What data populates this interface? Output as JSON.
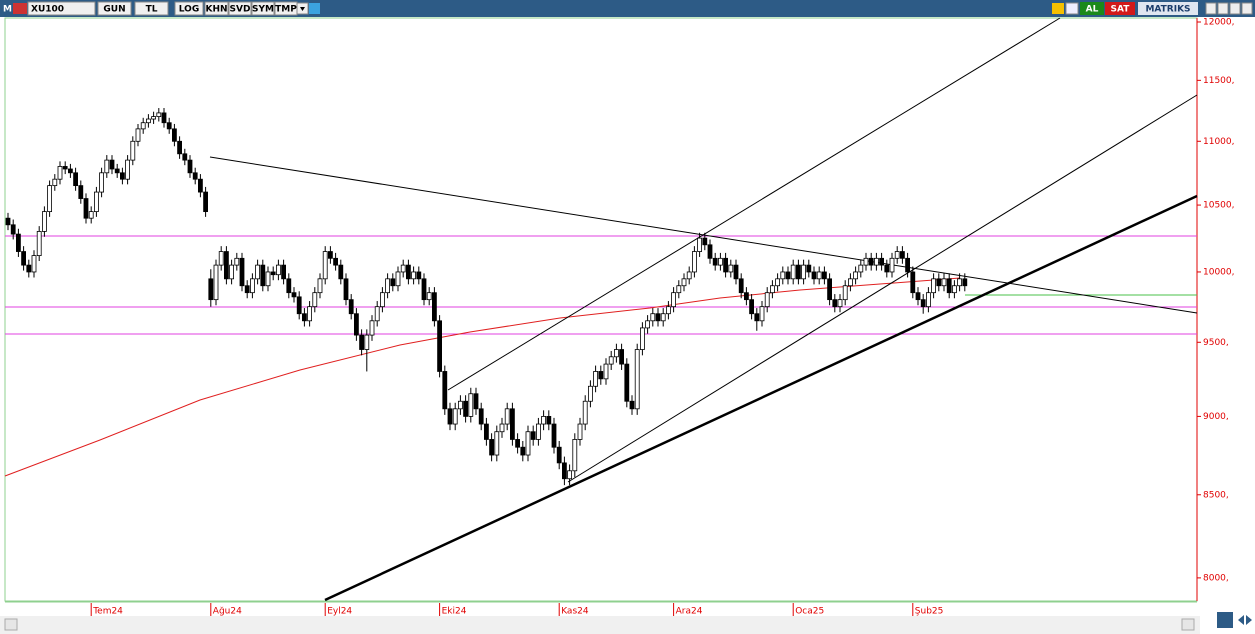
{
  "toolbar": {
    "logo": "M",
    "symbol": "XU100",
    "buttons": [
      "GUN",
      "TL",
      "LOG",
      "KHN",
      "SVD",
      "SYM",
      "TMP"
    ],
    "buy": "AL",
    "sell": "SAT",
    "brand": "MATRIKS"
  },
  "chart_data": {
    "type": "candlestick",
    "log": true,
    "up_color": "#ffffff",
    "down_color": "#000000",
    "axis_color": "#e00000",
    "ylim": [
      7872,
      12035
    ],
    "yticks": [
      {
        "value": 8000,
        "label": "8000,"
      },
      {
        "value": 8500,
        "label": "8500,"
      },
      {
        "value": 9000,
        "label": "9000,"
      },
      {
        "value": 9500,
        "label": "9500,"
      },
      {
        "value": 10000,
        "label": "10000,"
      },
      {
        "value": 10500,
        "label": "10500,"
      },
      {
        "value": 11000,
        "label": "11000,"
      },
      {
        "value": 11500,
        "label": "11500,"
      },
      {
        "value": 12000,
        "label": "12000,"
      }
    ],
    "categories": [
      null,
      null,
      null,
      null,
      null,
      null,
      null,
      null,
      null,
      null,
      null,
      null,
      null,
      null,
      null,
      null,
      "Tem24",
      null,
      null,
      null,
      null,
      null,
      null,
      null,
      null,
      null,
      null,
      null,
      null,
      null,
      null,
      null,
      null,
      null,
      null,
      null,
      null,
      null,
      null,
      "Ağu24",
      null,
      null,
      null,
      null,
      null,
      null,
      null,
      null,
      null,
      null,
      null,
      null,
      null,
      null,
      null,
      null,
      null,
      null,
      null,
      null,
      null,
      "Eyl24",
      null,
      null,
      null,
      null,
      null,
      null,
      null,
      null,
      null,
      null,
      null,
      null,
      null,
      null,
      null,
      null,
      null,
      null,
      null,
      null,
      null,
      "Eki24",
      null,
      null,
      null,
      null,
      null,
      null,
      null,
      null,
      null,
      null,
      null,
      null,
      null,
      null,
      null,
      null,
      null,
      null,
      null,
      null,
      null,
      null,
      "Kas24",
      null,
      null,
      null,
      null,
      null,
      null,
      null,
      null,
      null,
      null,
      null,
      null,
      null,
      null,
      null,
      null,
      null,
      null,
      null,
      null,
      null,
      "Ara24",
      null,
      null,
      null,
      null,
      null,
      null,
      null,
      null,
      null,
      null,
      null,
      null,
      null,
      null,
      null,
      null,
      null,
      null,
      null,
      null,
      null,
      null,
      "Oca25",
      null,
      null,
      null,
      null,
      null,
      null,
      null,
      null,
      null,
      null,
      null,
      null,
      null,
      null,
      null,
      null,
      null,
      null,
      null,
      null,
      null,
      null,
      "Şub25",
      null,
      null,
      null,
      null,
      null,
      null,
      null,
      null,
      null,
      null
    ],
    "ohlc": [
      [
        10400,
        10440,
        10310,
        10350
      ],
      [
        10350,
        10390,
        10240,
        10280
      ],
      [
        10280,
        10320,
        10110,
        10150
      ],
      [
        10150,
        10190,
        10010,
        10050
      ],
      [
        10050,
        10090,
        9960,
        10000
      ],
      [
        10000,
        10160,
        9960,
        10120
      ],
      [
        10120,
        10340,
        10080,
        10300
      ],
      [
        10300,
        10490,
        10260,
        10450
      ],
      [
        10450,
        10690,
        10410,
        10650
      ],
      [
        10650,
        10740,
        10610,
        10700
      ],
      [
        10700,
        10840,
        10660,
        10800
      ],
      [
        10800,
        10840,
        10740,
        10780
      ],
      [
        10780,
        10820,
        10710,
        10750
      ],
      [
        10750,
        10790,
        10610,
        10650
      ],
      [
        10650,
        10690,
        10510,
        10550
      ],
      [
        10550,
        10590,
        10360,
        10400
      ],
      [
        10400,
        10490,
        10360,
        10450
      ],
      [
        10450,
        10640,
        10410,
        10600
      ],
      [
        10600,
        10790,
        10560,
        10750
      ],
      [
        10750,
        10890,
        10710,
        10850
      ],
      [
        10850,
        10890,
        10740,
        10780
      ],
      [
        10780,
        10820,
        10710,
        10750
      ],
      [
        10750,
        10790,
        10660,
        10700
      ],
      [
        10700,
        10890,
        10660,
        10850
      ],
      [
        10850,
        11040,
        10810,
        11000
      ],
      [
        11000,
        11140,
        10960,
        11100
      ],
      [
        11100,
        11190,
        11060,
        11150
      ],
      [
        11150,
        11220,
        11110,
        11180
      ],
      [
        11180,
        11240,
        11140,
        11200
      ],
      [
        11200,
        11270,
        11160,
        11230
      ],
      [
        11230,
        11270,
        11110,
        11150
      ],
      [
        11150,
        11190,
        11060,
        11100
      ],
      [
        11100,
        11140,
        10960,
        11000
      ],
      [
        11000,
        11040,
        10860,
        10900
      ],
      [
        10900,
        10940,
        10810,
        10850
      ],
      [
        10850,
        10890,
        10710,
        10750
      ],
      [
        10750,
        10790,
        10660,
        10700
      ],
      [
        10700,
        10740,
        10560,
        10600
      ],
      [
        10600,
        10640,
        10410,
        10450
      ],
      [
        9950,
        10020,
        9750,
        9800
      ],
      [
        9800,
        10090,
        9760,
        10050
      ],
      [
        10050,
        10190,
        10010,
        10150
      ],
      [
        10150,
        10190,
        9910,
        9950
      ],
      [
        9950,
        10090,
        9910,
        10050
      ],
      [
        10050,
        10140,
        10010,
        10100
      ],
      [
        10100,
        10140,
        9860,
        9900
      ],
      [
        9900,
        9940,
        9810,
        9850
      ],
      [
        9850,
        9990,
        9810,
        9950
      ],
      [
        9950,
        10090,
        9910,
        10050
      ],
      [
        10050,
        10090,
        9860,
        9900
      ],
      [
        9900,
        10040,
        9860,
        10000
      ],
      [
        10000,
        10040,
        9940,
        9980
      ],
      [
        9980,
        10090,
        9940,
        10050
      ],
      [
        10050,
        10090,
        9910,
        9950
      ],
      [
        9950,
        9990,
        9810,
        9850
      ],
      [
        9850,
        9890,
        9780,
        9820
      ],
      [
        9820,
        9860,
        9660,
        9700
      ],
      [
        9700,
        9740,
        9610,
        9650
      ],
      [
        9650,
        9790,
        9610,
        9750
      ],
      [
        9750,
        9890,
        9710,
        9850
      ],
      [
        9850,
        9990,
        9810,
        9950
      ],
      [
        9950,
        10190,
        9910,
        10150
      ],
      [
        10150,
        10190,
        10060,
        10100
      ],
      [
        10100,
        10140,
        10010,
        10050
      ],
      [
        10050,
        10090,
        9910,
        9950
      ],
      [
        9950,
        9990,
        9760,
        9800
      ],
      [
        9800,
        9840,
        9660,
        9700
      ],
      [
        9700,
        9740,
        9510,
        9550
      ],
      [
        9550,
        9590,
        9410,
        9450
      ],
      [
        9450,
        9590,
        9300,
        9550
      ],
      [
        9550,
        9690,
        9510,
        9650
      ],
      [
        9650,
        9790,
        9610,
        9750
      ],
      [
        9750,
        9890,
        9710,
        9850
      ],
      [
        9850,
        9990,
        9810,
        9950
      ],
      [
        9950,
        9990,
        9860,
        9900
      ],
      [
        9900,
        10040,
        9860,
        10000
      ],
      [
        10000,
        10090,
        9960,
        10050
      ],
      [
        10050,
        10090,
        9910,
        9950
      ],
      [
        9950,
        10040,
        9910,
        10000
      ],
      [
        10000,
        10040,
        9910,
        9950
      ],
      [
        9950,
        9990,
        9760,
        9800
      ],
      [
        9800,
        9890,
        9760,
        9850
      ],
      [
        9850,
        9890,
        9610,
        9650
      ],
      [
        9650,
        9690,
        9260,
        9300
      ],
      [
        9300,
        9340,
        9010,
        9050
      ],
      [
        9050,
        9090,
        8910,
        8950
      ],
      [
        8950,
        9090,
        8910,
        9050
      ],
      [
        9050,
        9140,
        9010,
        9100
      ],
      [
        9100,
        9140,
        8960,
        9000
      ],
      [
        9000,
        9190,
        8960,
        9150
      ],
      [
        9150,
        9190,
        9010,
        9050
      ],
      [
        9050,
        9090,
        8910,
        8950
      ],
      [
        8950,
        8990,
        8810,
        8850
      ],
      [
        8850,
        8890,
        8710,
        8750
      ],
      [
        8750,
        8940,
        8710,
        8900
      ],
      [
        8900,
        8990,
        8860,
        8950
      ],
      [
        8950,
        9090,
        8910,
        9050
      ],
      [
        9050,
        9090,
        8810,
        8850
      ],
      [
        8850,
        8890,
        8760,
        8800
      ],
      [
        8800,
        8840,
        8710,
        8750
      ],
      [
        8750,
        8940,
        8710,
        8900
      ],
      [
        8900,
        8940,
        8810,
        8850
      ],
      [
        8850,
        8990,
        8810,
        8950
      ],
      [
        8950,
        9040,
        8910,
        9000
      ],
      [
        9000,
        9040,
        8910,
        8950
      ],
      [
        8950,
        8990,
        8760,
        8800
      ],
      [
        8800,
        8840,
        8660,
        8700
      ],
      [
        8700,
        8740,
        8560,
        8600
      ],
      [
        8600,
        8690,
        8560,
        8650
      ],
      [
        8650,
        8890,
        8610,
        8850
      ],
      [
        8850,
        8990,
        8810,
        8950
      ],
      [
        8950,
        9140,
        8910,
        9100
      ],
      [
        9100,
        9240,
        9060,
        9200
      ],
      [
        9200,
        9340,
        9160,
        9300
      ],
      [
        9300,
        9340,
        9210,
        9250
      ],
      [
        9250,
        9390,
        9210,
        9350
      ],
      [
        9350,
        9440,
        9310,
        9400
      ],
      [
        9400,
        9490,
        9360,
        9450
      ],
      [
        9450,
        9490,
        9310,
        9350
      ],
      [
        9350,
        9390,
        9060,
        9100
      ],
      [
        9100,
        9140,
        9010,
        9050
      ],
      [
        9050,
        9490,
        9010,
        9450
      ],
      [
        9450,
        9640,
        9410,
        9600
      ],
      [
        9600,
        9690,
        9560,
        9650
      ],
      [
        9650,
        9740,
        9610,
        9700
      ],
      [
        9700,
        9740,
        9610,
        9650
      ],
      [
        9650,
        9740,
        9610,
        9700
      ],
      [
        9700,
        9790,
        9660,
        9750
      ],
      [
        9750,
        9890,
        9710,
        9850
      ],
      [
        9850,
        9940,
        9810,
        9900
      ],
      [
        9900,
        9990,
        9860,
        9950
      ],
      [
        9950,
        10040,
        9910,
        10000
      ],
      [
        10000,
        10190,
        9960,
        10150
      ],
      [
        10150,
        10290,
        10110,
        10250
      ],
      [
        10250,
        10290,
        10160,
        10200
      ],
      [
        10200,
        10240,
        10060,
        10100
      ],
      [
        10100,
        10140,
        10010,
        10050
      ],
      [
        10050,
        10140,
        10010,
        10100
      ],
      [
        10100,
        10140,
        9960,
        10000
      ],
      [
        10000,
        10090,
        9960,
        10050
      ],
      [
        10050,
        10090,
        9910,
        9950
      ],
      [
        9950,
        9990,
        9810,
        9850
      ],
      [
        9850,
        9890,
        9760,
        9800
      ],
      [
        9800,
        9840,
        9660,
        9700
      ],
      [
        9700,
        9740,
        9580,
        9650
      ],
      [
        9650,
        9790,
        9610,
        9750
      ],
      [
        9750,
        9890,
        9710,
        9850
      ],
      [
        9850,
        9940,
        9810,
        9900
      ],
      [
        9900,
        9990,
        9860,
        9950
      ],
      [
        9950,
        10040,
        9910,
        10000
      ],
      [
        10000,
        10040,
        9910,
        9950
      ],
      [
        9950,
        10090,
        9910,
        10050
      ],
      [
        10050,
        10090,
        9910,
        9950
      ],
      [
        9950,
        10090,
        9910,
        10050
      ],
      [
        10050,
        10090,
        9960,
        10000
      ],
      [
        10000,
        10040,
        9910,
        9950
      ],
      [
        9950,
        10040,
        9910,
        10000
      ],
      [
        10000,
        10040,
        9910,
        9950
      ],
      [
        9950,
        9990,
        9760,
        9800
      ],
      [
        9800,
        9840,
        9710,
        9750
      ],
      [
        9750,
        9840,
        9710,
        9800
      ],
      [
        9800,
        9940,
        9760,
        9900
      ],
      [
        9900,
        9990,
        9860,
        9950
      ],
      [
        9950,
        10040,
        9910,
        10000
      ],
      [
        10000,
        10090,
        9960,
        10050
      ],
      [
        10050,
        10140,
        10010,
        10100
      ],
      [
        10100,
        10140,
        10010,
        10050
      ],
      [
        10050,
        10140,
        10010,
        10100
      ],
      [
        10100,
        10140,
        10010,
        10050
      ],
      [
        10050,
        10090,
        9960,
        10000
      ],
      [
        10000,
        10140,
        9960,
        10100
      ],
      [
        10100,
        10190,
        10060,
        10150
      ],
      [
        10150,
        10190,
        10060,
        10100
      ],
      [
        10100,
        10140,
        9960,
        10000
      ],
      [
        10000,
        10040,
        9810,
        9850
      ],
      [
        9850,
        9890,
        9760,
        9800
      ],
      [
        9800,
        9840,
        9700,
        9750
      ],
      [
        9750,
        9890,
        9710,
        9850
      ],
      [
        9850,
        9990,
        9810,
        9950
      ],
      [
        9950,
        9990,
        9860,
        9900
      ],
      [
        9900,
        9990,
        9860,
        9950
      ],
      [
        9950,
        9990,
        9810,
        9850
      ],
      [
        9850,
        9940,
        9810,
        9900
      ],
      [
        9900,
        9990,
        9860,
        9950
      ],
      [
        9950,
        9990,
        9860,
        9900
      ]
    ]
  }
}
